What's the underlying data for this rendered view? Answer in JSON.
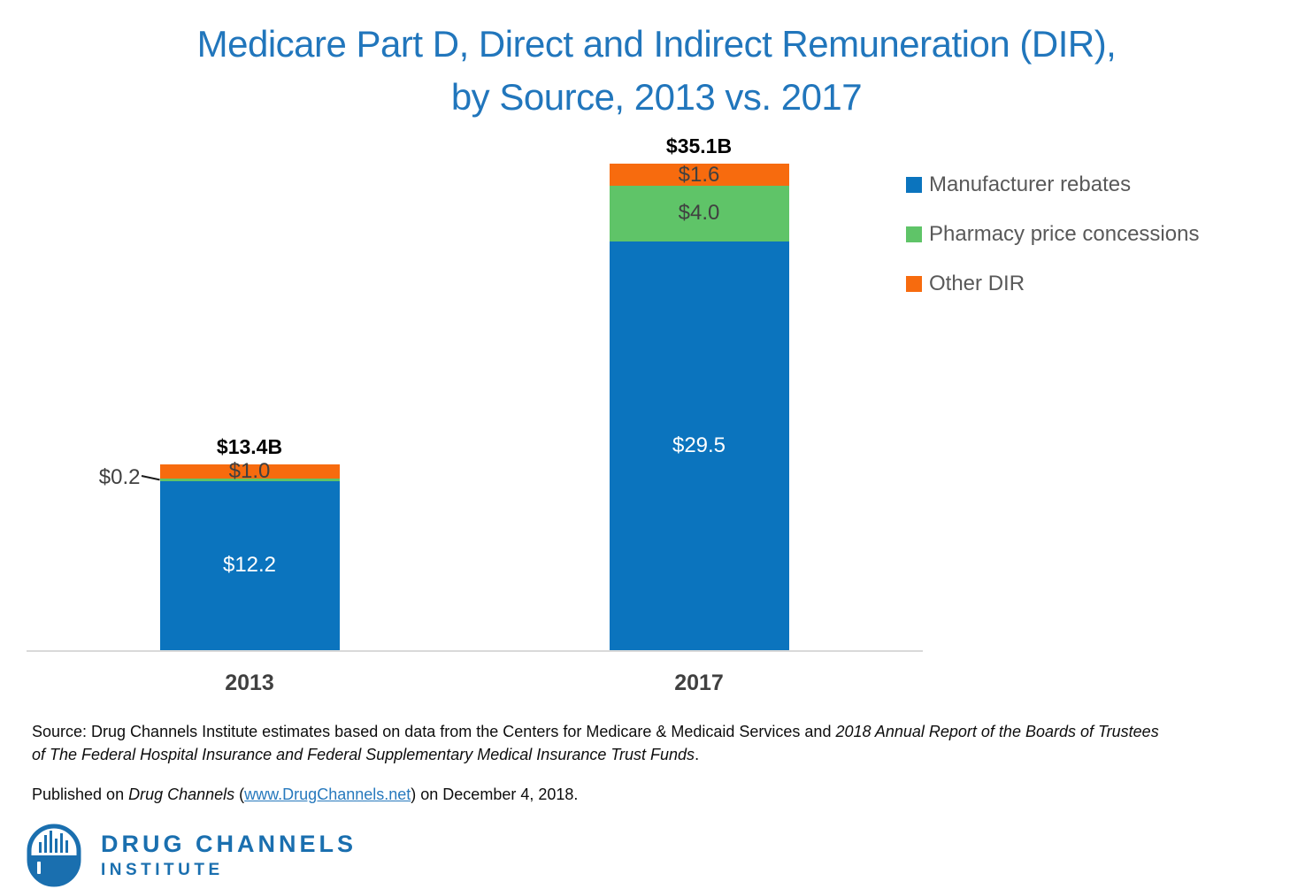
{
  "title": {
    "line1": "Medicare Part D, Direct and Indirect Remuneration (DIR),",
    "line2": "by Source, 2013 vs. 2017"
  },
  "chart_data": {
    "type": "bar",
    "stacked": true,
    "title": "Medicare Part D, Direct and Indirect Remuneration (DIR), by Source, 2013 vs. 2017",
    "categories": [
      "2013",
      "2017"
    ],
    "series": [
      {
        "name": "Manufacturer rebates",
        "values": [
          12.2,
          29.5
        ],
        "labels": [
          "$12.2",
          "$29.5"
        ],
        "color": "#0B74BE",
        "label_color": "#FFFFFF"
      },
      {
        "name": "Pharmacy price concessions",
        "values": [
          0.2,
          4.0
        ],
        "labels": [
          "$0.2",
          "$4.0"
        ],
        "color": "#5FC468",
        "label_color": "#404040"
      },
      {
        "name": "Other DIR",
        "values": [
          1.0,
          1.6
        ],
        "labels": [
          "$1.0",
          "$1.6"
        ],
        "color": "#F76B0E",
        "label_color": "#404040"
      }
    ],
    "totals": [
      "$13.4B",
      "$35.1B"
    ],
    "xlabel": "",
    "ylabel": "",
    "ylim": [
      0,
      35.1
    ],
    "grid": false,
    "legend_position": "right",
    "units": "billions USD"
  },
  "footer": {
    "source_regular": "Source: Drug Channels Institute estimates based on data from the Centers for Medicare & Medicaid Services and ",
    "source_italic_line1": "2018 Annual Report of the Boards of Trustees",
    "source_italic_line2": "of The Federal Hospital Insurance and Federal Supplementary Medical Insurance Trust Funds",
    "source_period": ".",
    "published_prefix": "Published on ",
    "published_italic": "Drug Channels",
    "published_open_paren": " (",
    "published_link": "www.DrugChannels.net",
    "published_suffix": ") on December 4, 2018."
  },
  "logo": {
    "line1": "DRUG CHANNELS",
    "line2": "INSTITUTE"
  },
  "colors": {
    "title_blue": "#2176BC",
    "bar_blue": "#0B74BE",
    "bar_green": "#5FC468",
    "bar_orange": "#F76B0E",
    "axis_gray": "#D9D9D9",
    "legend_text_gray": "#595959",
    "link_blue": "#2779BD",
    "logo_blue": "#1A6FAF"
  }
}
